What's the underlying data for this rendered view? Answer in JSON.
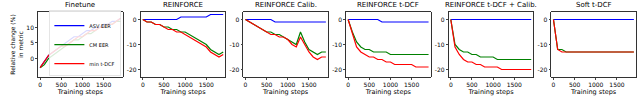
{
  "chart_data": [
    {
      "type": "line",
      "title": "Finetune",
      "x_label": "Training steps",
      "y_label": "Relative change (%)\nin metric",
      "x": [
        0,
        100,
        200,
        300,
        400,
        500,
        600,
        700,
        800,
        900,
        1000,
        1100,
        1200,
        1300,
        1400,
        1500,
        1600,
        1700,
        1800,
        1900
      ],
      "series": [
        {
          "name": "ASV EER",
          "color": "#0000ff",
          "values": [
            -3,
            -1,
            1,
            2,
            3,
            4,
            5,
            6,
            7,
            7,
            8,
            9,
            9,
            10,
            10,
            11,
            11,
            12,
            12,
            13
          ]
        },
        {
          "name": "CM EER",
          "color": "#008000",
          "values": [
            -3,
            -2,
            0,
            1,
            2,
            3,
            4,
            5,
            6,
            6,
            7,
            8,
            8,
            9,
            10,
            10,
            11,
            11,
            12,
            12
          ]
        },
        {
          "name": "min t-DCF",
          "color": "#ff0000",
          "values": [
            -3,
            -1,
            1,
            2,
            3,
            4,
            4,
            5,
            6,
            7,
            7,
            8,
            9,
            9,
            10,
            10,
            11,
            11,
            12,
            13
          ]
        }
      ],
      "xlim": [
        -50,
        1950
      ],
      "ylim": [
        -6,
        15
      ],
      "xticks": [
        0,
        500,
        1000,
        1500
      ],
      "yticks": [
        0,
        5,
        10
      ],
      "legend": "lower right"
    },
    {
      "type": "line",
      "title": "REINFORCE",
      "x_label": "Training steps",
      "x": [
        0,
        100,
        200,
        300,
        400,
        500,
        600,
        700,
        800,
        900,
        1000,
        1100,
        1200,
        1300,
        1400,
        1500,
        1600,
        1700,
        1800,
        1900
      ],
      "series": [
        {
          "color": "#0000ff",
          "values": [
            0,
            0,
            0,
            0,
            0,
            0,
            0,
            0,
            0,
            1,
            1,
            1,
            1,
            1,
            1,
            1,
            2,
            2,
            2,
            2
          ]
        },
        {
          "color": "#008000",
          "values": [
            0,
            -1,
            -1,
            -2,
            -2,
            -3,
            -3,
            -4,
            -4,
            -5,
            -5,
            -6,
            -7,
            -8,
            -9,
            -10,
            -12,
            -13,
            -14,
            -13
          ]
        },
        {
          "color": "#ff0000",
          "values": [
            0,
            -1,
            -1,
            -2,
            -2,
            -3,
            -4,
            -4,
            -5,
            -5,
            -6,
            -7,
            -8,
            -9,
            -10,
            -11,
            -13,
            -14,
            -15,
            -14
          ]
        }
      ],
      "xlim": [
        -50,
        1950
      ],
      "ylim": [
        -23,
        3
      ],
      "xticks": [
        0,
        500,
        1000,
        1500
      ],
      "yticks": [
        0,
        -10,
        -20
      ]
    },
    {
      "type": "line",
      "title": "REINFORCE Calib.",
      "x_label": "Training steps",
      "x": [
        0,
        100,
        200,
        300,
        400,
        500,
        600,
        700,
        800,
        900,
        1000,
        1100,
        1200,
        1300,
        1400,
        1500,
        1600,
        1700,
        1800,
        1900
      ],
      "series": [
        {
          "color": "#0000ff",
          "values": [
            0,
            0,
            0,
            0,
            0,
            0,
            0,
            -1,
            -1,
            -1,
            -1,
            -1,
            -1,
            -1,
            -1,
            -1,
            -1,
            -1,
            -1,
            -1
          ]
        },
        {
          "color": "#008000",
          "values": [
            0,
            -1,
            -2,
            -3,
            -4,
            -5,
            -5,
            -6,
            -6,
            -7,
            -8,
            -9,
            -10,
            -5,
            -9,
            -12,
            -13,
            -14,
            -13,
            -13
          ]
        },
        {
          "color": "#ff0000",
          "values": [
            0,
            -1,
            -2,
            -3,
            -4,
            -5,
            -6,
            -6,
            -7,
            -7,
            -8,
            -10,
            -11,
            -7,
            -10,
            -13,
            -15,
            -16,
            -15,
            -15
          ]
        }
      ],
      "xlim": [
        -50,
        1950
      ],
      "ylim": [
        -23,
        3
      ],
      "xticks": [
        0,
        500,
        1000,
        1500
      ],
      "yticks": [
        0,
        -10,
        -20
      ]
    },
    {
      "type": "line",
      "title": "REINFORCE t-DCF",
      "x_label": "Training steps",
      "x": [
        0,
        100,
        200,
        300,
        400,
        500,
        600,
        700,
        800,
        900,
        1000,
        1100,
        1200,
        1300,
        1400,
        1500,
        1600,
        1700,
        1800,
        1900
      ],
      "series": [
        {
          "color": "#0000ff",
          "values": [
            0,
            0,
            0,
            0,
            0,
            0,
            0,
            0,
            -1,
            -1,
            -1,
            -1,
            -1,
            -1,
            -1,
            -1,
            -1,
            -1,
            -1,
            -1
          ]
        },
        {
          "color": "#008000",
          "values": [
            0,
            -5,
            -9,
            -11,
            -12,
            -12,
            -13,
            -13,
            -13,
            -13,
            -14,
            -14,
            -14,
            -14,
            -14,
            -14,
            -14,
            -14,
            -14,
            -14
          ]
        },
        {
          "color": "#ff0000",
          "values": [
            0,
            -6,
            -11,
            -13,
            -14,
            -15,
            -15,
            -16,
            -16,
            -17,
            -17,
            -18,
            -18,
            -18,
            -18,
            -18,
            -19,
            -19,
            -19,
            -19
          ]
        }
      ],
      "xlim": [
        -50,
        1950
      ],
      "ylim": [
        -23,
        3
      ],
      "xticks": [
        0,
        500,
        1000,
        1500
      ],
      "yticks": [
        0,
        -10,
        -20
      ]
    },
    {
      "type": "line",
      "title": "REINFORCE t-DCF + Calib.",
      "x_label": "Training steps",
      "x": [
        0,
        100,
        200,
        300,
        400,
        500,
        600,
        700,
        800,
        900,
        1000,
        1100,
        1200,
        1300,
        1400,
        1500,
        1600,
        1700,
        1800,
        1900
      ],
      "series": [
        {
          "color": "#0000ff",
          "values": [
            0,
            0,
            0,
            0,
            0,
            0,
            0,
            0,
            0,
            0,
            0,
            0,
            0,
            0,
            0,
            0,
            0,
            0,
            0,
            0
          ]
        },
        {
          "color": "#008000",
          "values": [
            0,
            -10,
            -12,
            -13,
            -13,
            -14,
            -14,
            -15,
            -15,
            -15,
            -15,
            -16,
            -16,
            -16,
            -16,
            -16,
            -16,
            -16,
            -16,
            -16
          ]
        },
        {
          "color": "#ff0000",
          "values": [
            0,
            -11,
            -14,
            -16,
            -17,
            -17,
            -18,
            -18,
            -19,
            -19,
            -19,
            -19,
            -20,
            -20,
            -20,
            -20,
            -20,
            -20,
            -20,
            -20
          ]
        }
      ],
      "xlim": [
        -50,
        1950
      ],
      "ylim": [
        -23,
        3
      ],
      "xticks": [
        0,
        500,
        1000,
        1500
      ],
      "yticks": [
        0,
        -10,
        -20
      ]
    },
    {
      "type": "line",
      "title": "Soft t-DCF",
      "x_label": "Training steps",
      "x": [
        0,
        100,
        200,
        300,
        400,
        500,
        600,
        700,
        800,
        900,
        1000,
        1100,
        1200,
        1300,
        1400,
        1500,
        1600,
        1700,
        1800,
        1900
      ],
      "series": [
        {
          "color": "#0000ff",
          "values": [
            0,
            0,
            0,
            0,
            0,
            0,
            0,
            0,
            0,
            0,
            0,
            0,
            0,
            0,
            0,
            0,
            0,
            0,
            0,
            0
          ]
        },
        {
          "color": "#008000",
          "values": [
            0,
            -12,
            -12,
            -13,
            -13,
            -13,
            -13,
            -13,
            -13,
            -13,
            -13,
            -13,
            -13,
            -13,
            -13,
            -13,
            -13,
            -13,
            -13,
            -13
          ]
        },
        {
          "color": "#ff0000",
          "values": [
            0,
            -12,
            -13,
            -13,
            -13,
            -13,
            -13,
            -13,
            -13,
            -13,
            -13,
            -13,
            -13,
            -13,
            -13,
            -13,
            -13,
            -13,
            -13,
            -13
          ]
        }
      ],
      "xlim": [
        -50,
        1950
      ],
      "ylim": [
        -23,
        3
      ],
      "xticks": [
        0,
        500,
        1000,
        1500
      ],
      "yticks": [
        0,
        -10,
        -20
      ]
    }
  ]
}
